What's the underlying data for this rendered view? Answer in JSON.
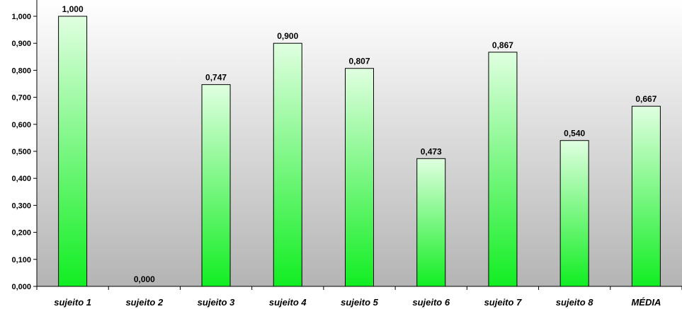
{
  "chart_data": {
    "type": "bar",
    "categories": [
      "sujeito 1",
      "sujeito 2",
      "sujeito 3",
      "sujeito 4",
      "sujeito 5",
      "sujeito 6",
      "sujeito 7",
      "sujeito 8",
      "MÉDIA"
    ],
    "values": [
      1.0,
      0.0,
      0.747,
      0.9,
      0.807,
      0.473,
      0.867,
      0.54,
      0.667
    ],
    "value_labels": [
      "1,000",
      "0,000",
      "0,747",
      "0,900",
      "0,807",
      "0,473",
      "0,867",
      "0,540",
      "0,667"
    ],
    "ylim": [
      0,
      1
    ],
    "ytick_step": 0.1,
    "ytick_labels": [
      "0,000",
      "0,100",
      "0,200",
      "0,300",
      "0,400",
      "0,500",
      "0,600",
      "0,700",
      "0,800",
      "0,900",
      "1,000"
    ],
    "title": "",
    "xlabel": "",
    "ylabel": "",
    "grid": false,
    "legend": "none",
    "colors": {
      "bar_top": "#e0ffe0",
      "bar_bottom": "#11ee22",
      "bar_stroke": "#000000",
      "plot_bg_top": "#ffffff",
      "plot_bg_bottom": "#b4b4b4"
    }
  }
}
